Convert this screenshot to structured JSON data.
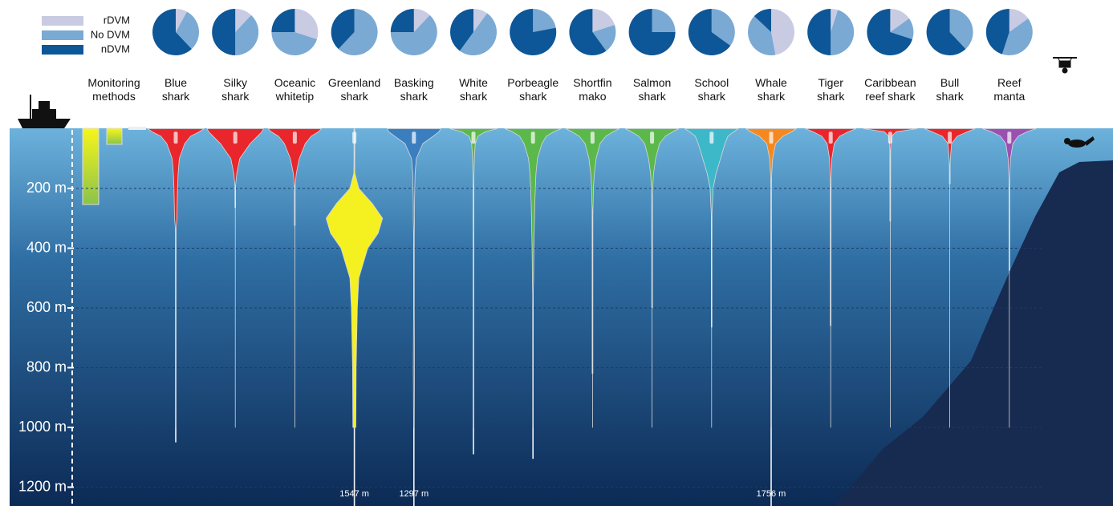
{
  "chart_data": {
    "type": "violin",
    "legend": {
      "labels": [
        "rDVM",
        "No DVM",
        "nDVM"
      ],
      "colors": [
        "#c9cbe3",
        "#7aa9d4",
        "#0d5697"
      ]
    },
    "monitoring_label": "Monitoring\nmethods",
    "ylim": [
      0,
      1260
    ],
    "yticks": [
      {
        "value": 200,
        "label": "200 m"
      },
      {
        "value": 400,
        "label": "400 m"
      },
      {
        "value": 600,
        "label": "600 m"
      },
      {
        "value": 800,
        "label": "800 m"
      },
      {
        "value": 1000,
        "label": "1000 m"
      },
      {
        "value": 1200,
        "label": "1200 m"
      }
    ],
    "grid": true,
    "profile_depths": [
      0,
      10,
      25,
      50,
      100,
      150,
      200,
      250,
      300,
      350,
      400,
      500,
      600,
      800,
      1000
    ],
    "species": [
      {
        "name": "Blue\nshark",
        "color": "#e8262b",
        "pie": [
          8,
          30,
          62
        ],
        "profile": [
          0.95,
          0.8,
          0.5,
          0.3,
          0.12,
          0.08,
          0.06,
          0.05,
          0.04,
          0,
          0,
          0,
          0,
          0,
          0
        ],
        "max_depth": 1050
      },
      {
        "name": "Silky\nshark",
        "color": "#e8262b",
        "pie": [
          12,
          38,
          50
        ],
        "profile": [
          0.95,
          0.9,
          0.75,
          0.5,
          0.15,
          0.05,
          0,
          0,
          0,
          0,
          0,
          0,
          0,
          0,
          0
        ],
        "max_depth": 265
      },
      {
        "name": "Oceanic\nwhitetip",
        "color": "#e8262b",
        "pie": [
          30,
          45,
          25
        ],
        "profile": [
          0.9,
          0.8,
          0.55,
          0.35,
          0.15,
          0.05,
          0,
          0,
          0,
          0,
          0,
          0,
          0,
          0,
          0
        ],
        "max_depth": 325
      },
      {
        "name": "Greenland\nshark",
        "color": "#f5f020",
        "pie": [
          0,
          62,
          38
        ],
        "profile": [
          0,
          0,
          0,
          0,
          0,
          0.02,
          0.15,
          0.6,
          0.95,
          0.8,
          0.45,
          0.15,
          0.1,
          0.06,
          0.05
        ],
        "max_depth": 1547,
        "max_depth_label": "1547 m"
      },
      {
        "name": "Basking\nshark",
        "color": "#3a7ec0",
        "pie": [
          12,
          63,
          25
        ],
        "profile": [
          0.9,
          0.85,
          0.65,
          0.3,
          0.08,
          0.04,
          0.03,
          0.02,
          0.02,
          0.01,
          0.01,
          0.01,
          0.01,
          0.02,
          0.01
        ],
        "max_depth": 1297,
        "max_depth_label": "1297 m"
      },
      {
        "name": "White\nshark",
        "color": "#5bb84a",
        "pie": [
          10,
          50,
          40
        ],
        "profile": [
          0.8,
          0.4,
          0.15,
          0.06,
          0.03,
          0.02,
          0.01,
          0.01,
          0.01,
          0,
          0,
          0,
          0,
          0,
          0
        ],
        "max_depth": 1090
      },
      {
        "name": "Porbeagle\nshark",
        "color": "#5bb84a",
        "pie": [
          0,
          22,
          78
        ],
        "profile": [
          0.95,
          0.7,
          0.45,
          0.3,
          0.15,
          0.1,
          0.08,
          0.06,
          0.05,
          0.04,
          0.03,
          0.02,
          0,
          0,
          0
        ],
        "max_depth": 1105
      },
      {
        "name": "Shortfin\nmako",
        "color": "#5bb84a",
        "pie": [
          20,
          20,
          60
        ],
        "profile": [
          0.9,
          0.7,
          0.45,
          0.25,
          0.12,
          0.06,
          0.03,
          0.02,
          0,
          0,
          0,
          0,
          0,
          0,
          0
        ],
        "max_depth": 820
      },
      {
        "name": "Salmon\nshark",
        "color": "#5bb84a",
        "pie": [
          0,
          25,
          75
        ],
        "profile": [
          0.9,
          0.7,
          0.45,
          0.25,
          0.12,
          0.05,
          0.02,
          0,
          0,
          0,
          0,
          0,
          0,
          0,
          0
        ],
        "max_depth": 600
      },
      {
        "name": "School\nshark",
        "color": "#3db8c8",
        "pie": [
          0,
          35,
          65
        ],
        "profile": [
          0.9,
          0.75,
          0.55,
          0.45,
          0.3,
          0.15,
          0.05,
          0.03,
          0,
          0,
          0,
          0,
          0,
          0,
          0
        ],
        "max_depth": 665
      },
      {
        "name": "Whale\nshark",
        "color": "#f5891f",
        "pie": [
          47,
          40,
          13
        ],
        "profile": [
          0.85,
          0.7,
          0.4,
          0.15,
          0.05,
          0.02,
          0,
          0,
          0,
          0,
          0,
          0,
          0,
          0,
          0
        ],
        "max_depth": 1756,
        "max_depth_label": "1756 m"
      },
      {
        "name": "Tiger\nshark",
        "color": "#e8262b",
        "pie": [
          5,
          45,
          50
        ],
        "profile": [
          0.85,
          0.6,
          0.3,
          0.12,
          0.04,
          0.02,
          0,
          0,
          0,
          0,
          0,
          0,
          0,
          0,
          0
        ],
        "max_depth": 660
      },
      {
        "name": "Caribbean\nreef shark",
        "color": "#e8262b",
        "pie": [
          15,
          15,
          70
        ],
        "profile": [
          0.9,
          0.2,
          0.05,
          0.02,
          0,
          0,
          0,
          0,
          0,
          0,
          0,
          0,
          0,
          0,
          0
        ],
        "max_depth": 310
      },
      {
        "name": "Bull\nshark",
        "color": "#e8262b",
        "pie": [
          0,
          38,
          62
        ],
        "profile": [
          0.85,
          0.6,
          0.25,
          0.06,
          0.02,
          0,
          0,
          0,
          0,
          0,
          0,
          0,
          0,
          0,
          0
        ],
        "max_depth": 185
      },
      {
        "name": "Reef\nmanta",
        "color": "#9b4fb0",
        "pie": [
          15,
          40,
          45
        ],
        "profile": [
          0.9,
          0.6,
          0.3,
          0.12,
          0.04,
          0.02,
          0,
          0,
          0,
          0,
          0,
          0,
          0,
          0,
          0
        ],
        "max_depth": 475
      }
    ]
  }
}
